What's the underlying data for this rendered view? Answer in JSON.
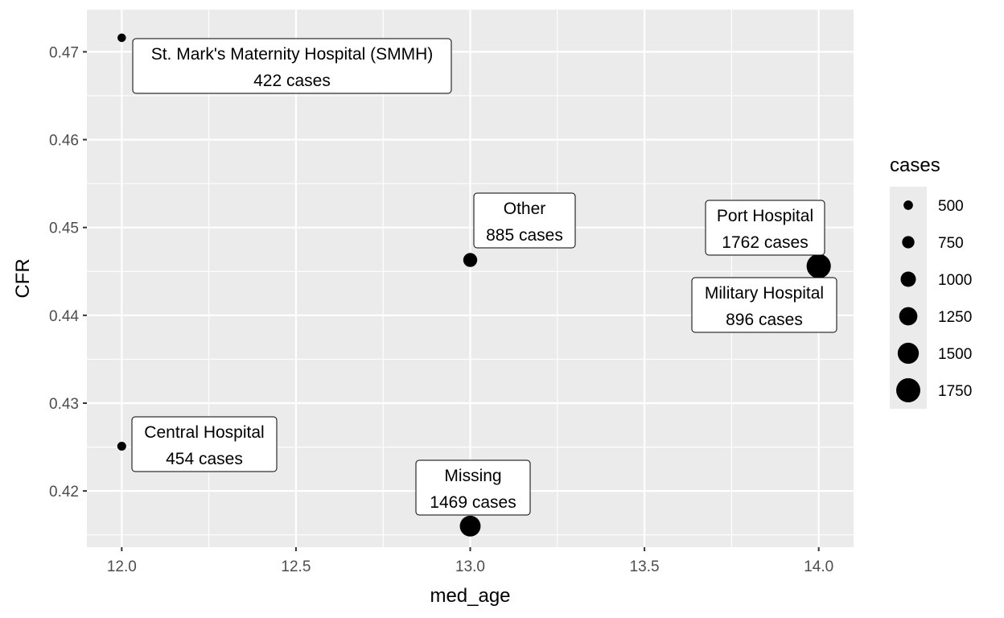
{
  "chart_data": {
    "type": "scatter",
    "title": "",
    "xlabel": "med_age",
    "ylabel": "CFR",
    "xlim": [
      11.9,
      14.1
    ],
    "ylim": [
      0.4136,
      0.4748
    ],
    "x_ticks": [
      12.0,
      12.5,
      13.0,
      13.5,
      14.0
    ],
    "x_tick_labels": [
      "12.0",
      "12.5",
      "13.0",
      "13.5",
      "14.0"
    ],
    "y_ticks": [
      0.42,
      0.43,
      0.44,
      0.45,
      0.46,
      0.47
    ],
    "y_tick_labels": [
      "0.42",
      "0.43",
      "0.44",
      "0.45",
      "0.46",
      "0.47"
    ],
    "grid": true,
    "legend": {
      "title": "cases",
      "placement": "right",
      "entries": [
        {
          "label": "500",
          "value": 500
        },
        {
          "label": "750",
          "value": 750
        },
        {
          "label": "1000",
          "value": 1000
        },
        {
          "label": "1250",
          "value": 1250
        },
        {
          "label": "1500",
          "value": 1500
        },
        {
          "label": "1750",
          "value": 1750
        }
      ]
    },
    "points": [
      {
        "hospital": "St. Mark's Maternity Hospital (SMMH)",
        "med_age": 12.0,
        "CFR": 0.4716,
        "cases": 422,
        "label_line1": "St. Mark's Maternity Hospital (SMMH)",
        "label_line2": "422 cases"
      },
      {
        "hospital": "Central Hospital",
        "med_age": 12.0,
        "CFR": 0.4251,
        "cases": 454,
        "label_line1": "Central Hospital",
        "label_line2": "454 cases"
      },
      {
        "hospital": "Other",
        "med_age": 13.0,
        "CFR": 0.4463,
        "cases": 885,
        "label_line1": "Other",
        "label_line2": "885 cases"
      },
      {
        "hospital": "Missing",
        "med_age": 13.0,
        "CFR": 0.416,
        "cases": 1469,
        "label_line1": "Missing",
        "label_line2": "1469 cases"
      },
      {
        "hospital": "Port Hospital",
        "med_age": 14.0,
        "CFR": 0.4456,
        "cases": 1762,
        "label_line1": "Port Hospital",
        "label_line2": "1762 cases"
      },
      {
        "hospital": "Military Hospital",
        "med_age": 14.0,
        "CFR": 0.4456,
        "cases": 896,
        "label_line1": "Military Hospital",
        "label_line2": "896 cases"
      }
    ],
    "colors": {
      "panel": "#ebebeb",
      "grid": "#ffffff",
      "point": "#000000",
      "axis_text": "#4d4d4d",
      "label_text": "#000000"
    }
  }
}
